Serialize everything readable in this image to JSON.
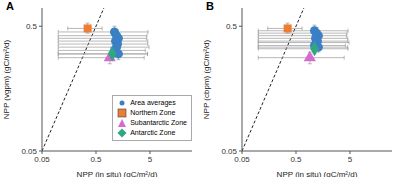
{
  "chart_data": [
    {
      "type": "scatter",
      "panel": "A",
      "x_label": "NPP (in situ) (gC/m²/d)",
      "y_label": "NPP (vgpm) (gC/m²/d)",
      "log": true,
      "xlim": [
        0.05,
        30
      ],
      "ylim": [
        0.05,
        0.7
      ],
      "xticks": [
        0.05,
        0.5,
        5
      ],
      "yticks": [
        0.05,
        0.5
      ],
      "legend": "lower right",
      "identity_line": {
        "x": [
          0.05,
          0.7
        ],
        "y": [
          0.05,
          0.7
        ],
        "line_style": "dashed"
      },
      "series": [
        {
          "name": "Area averages",
          "color": "#3b7fc4",
          "marker": "circle",
          "x": [
            1.1,
            1.2,
            1.3,
            1.15,
            1.25,
            1.2,
            1.1,
            1.3
          ],
          "y": [
            0.45,
            0.42,
            0.4,
            0.38,
            0.36,
            0.34,
            0.32,
            0.3
          ],
          "x_error": [
            [
              1.0,
              3.5
            ],
            [
              1.1,
              3.2
            ],
            [
              1.2,
              3.0
            ],
            [
              1.05,
              3.4
            ],
            [
              1.15,
              3.3
            ],
            [
              1.1,
              3.6
            ],
            [
              1.0,
              3.0
            ],
            [
              1.2,
              3.2
            ]
          ],
          "y_error": [
            [
              0.04,
              0.05
            ],
            [
              0.04,
              0.05
            ],
            [
              0.04,
              0.04
            ],
            [
              0.03,
              0.04
            ],
            [
              0.03,
              0.04
            ],
            [
              0.03,
              0.04
            ],
            [
              0.03,
              0.03
            ],
            [
              0.03,
              0.03
            ]
          ]
        },
        {
          "name": "Northern Zone",
          "color": "#ed7d31",
          "marker": "square",
          "x": [
            0.35
          ],
          "y": [
            0.48
          ],
          "x_error": [
            [
              0.2,
              0.3
            ]
          ],
          "y_error": [
            [
              0.04,
              0.05
            ]
          ]
        },
        {
          "name": "Subantarctic Zone",
          "color": "#d46ccf",
          "marker": "triangle",
          "x": [
            0.9
          ],
          "y": [
            0.28
          ],
          "x_error": [
            [
              0.8,
              3.0
            ]
          ],
          "y_error": [
            [
              0.03,
              0.03
            ]
          ]
        },
        {
          "name": "Antarctic Zone",
          "color": "#2fa784",
          "marker": "diamond",
          "x": [
            1.0
          ],
          "y": [
            0.3
          ],
          "x_error": [
            [
              0.9,
              3.5
            ]
          ],
          "y_error": [
            [
              0.03,
              0.04
            ]
          ]
        }
      ]
    },
    {
      "type": "scatter",
      "panel": "B",
      "x_label": "NPP (in situ) (gC/m²/d)",
      "y_label": "NPP (cbpm) (gC/m²/d)",
      "log": true,
      "xlim": [
        0.05,
        30
      ],
      "ylim": [
        0.05,
        0.7
      ],
      "xticks": [
        0.05,
        0.5,
        5
      ],
      "yticks": [
        0.05,
        0.5
      ],
      "identity_line": {
        "x": [
          0.05,
          0.7
        ],
        "y": [
          0.05,
          0.7
        ],
        "line_style": "dashed"
      },
      "series": [
        {
          "name": "Area averages",
          "color": "#3b7fc4",
          "marker": "circle",
          "x": [
            1.1,
            1.2,
            1.3,
            1.15,
            1.25,
            1.2,
            1.1,
            1.3
          ],
          "y": [
            0.46,
            0.44,
            0.42,
            0.4,
            0.38,
            0.37,
            0.35,
            0.34
          ],
          "x_error": [
            [
              1.0,
              3.5
            ],
            [
              1.1,
              3.2
            ],
            [
              1.2,
              3.0
            ],
            [
              1.05,
              3.4
            ],
            [
              1.15,
              3.3
            ],
            [
              1.1,
              3.6
            ],
            [
              1.0,
              3.0
            ],
            [
              1.2,
              3.2
            ]
          ],
          "y_error": [
            [
              0.04,
              0.05
            ],
            [
              0.04,
              0.05
            ],
            [
              0.04,
              0.04
            ],
            [
              0.03,
              0.04
            ],
            [
              0.03,
              0.04
            ],
            [
              0.03,
              0.04
            ],
            [
              0.03,
              0.03
            ],
            [
              0.03,
              0.03
            ]
          ]
        },
        {
          "name": "Northern Zone",
          "color": "#ed7d31",
          "marker": "square",
          "x": [
            0.35
          ],
          "y": [
            0.48
          ],
          "x_error": [
            [
              0.2,
              0.3
            ]
          ],
          "y_error": [
            [
              0.04,
              0.05
            ]
          ]
        },
        {
          "name": "Subantarctic Zone",
          "color": "#d46ccf",
          "marker": "triangle",
          "x": [
            0.9
          ],
          "y": [
            0.28
          ],
          "x_error": [
            [
              0.8,
              3.0
            ]
          ],
          "y_error": [
            [
              0.03,
              0.03
            ]
          ]
        },
        {
          "name": "Antarctic Zone",
          "color": "#2fa784",
          "marker": "diamond",
          "x": [
            1.1
          ],
          "y": [
            0.33
          ],
          "x_error": [
            [
              1.0,
              3.5
            ]
          ],
          "y_error": [
            [
              0.03,
              0.04
            ]
          ]
        }
      ]
    }
  ]
}
